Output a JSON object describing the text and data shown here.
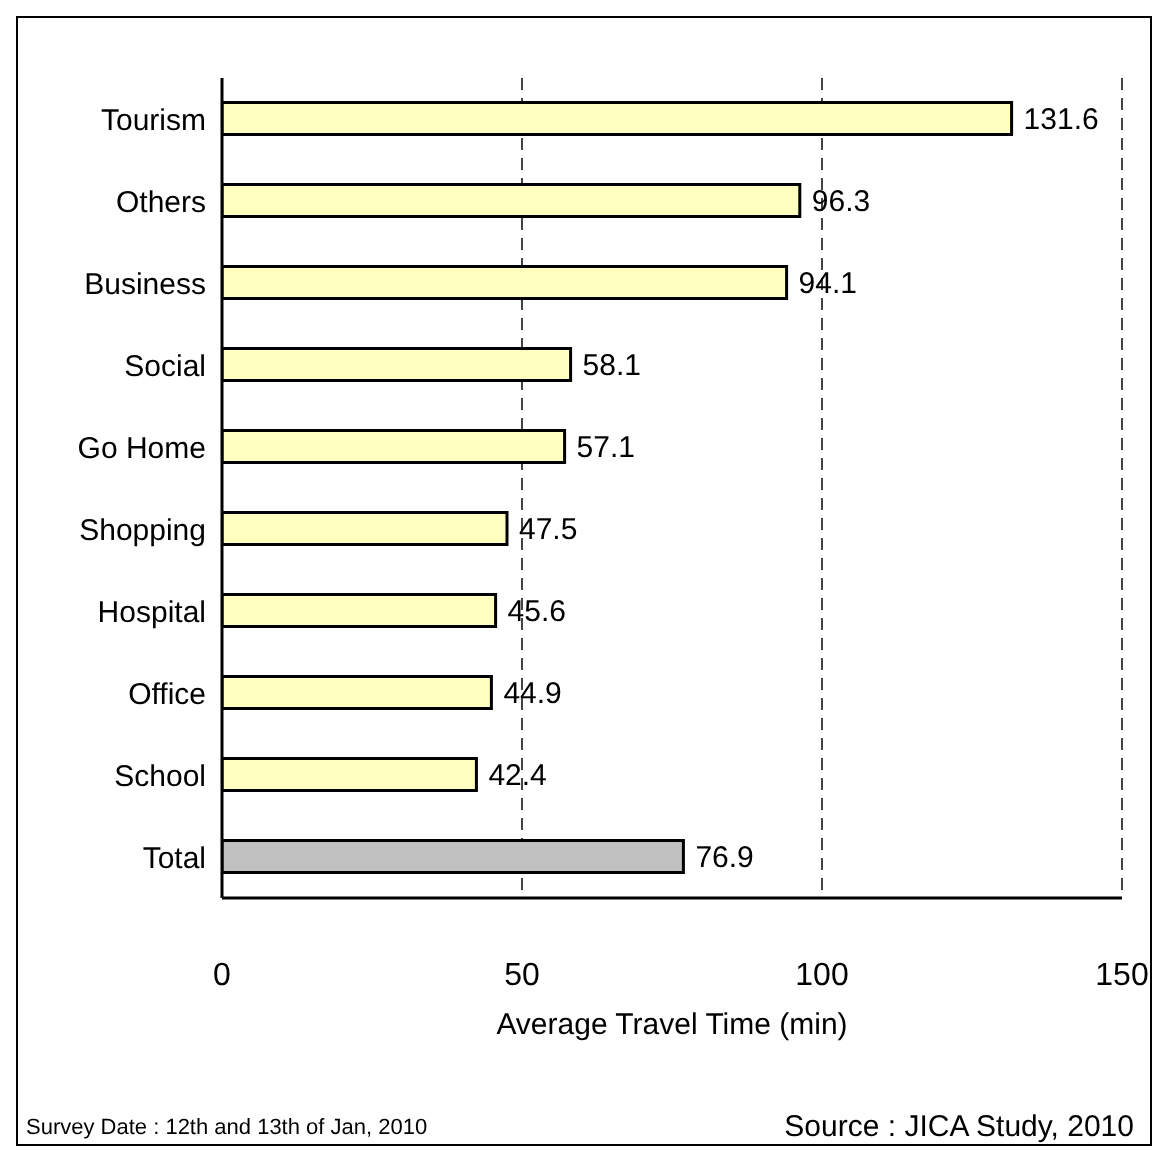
{
  "chart_data": {
    "type": "bar",
    "orientation": "horizontal",
    "categories": [
      "Tourism",
      "Others",
      "Business",
      "Social",
      "Go Home",
      "Shopping",
      "Hospital",
      "Office",
      "School",
      "Total"
    ],
    "values": [
      131.6,
      96.3,
      94.1,
      58.1,
      57.1,
      47.5,
      45.6,
      44.9,
      42.4,
      76.9
    ],
    "colors": [
      "#ffffc0",
      "#ffffc0",
      "#ffffc0",
      "#ffffc0",
      "#ffffc0",
      "#ffffc0",
      "#ffffc0",
      "#ffffc0",
      "#ffffc0",
      "#c0c0c0"
    ],
    "xlim": [
      0,
      150
    ],
    "xticks": [
      0,
      50,
      100,
      150
    ],
    "xlabel": "Average Travel Time (min)",
    "grid": "x",
    "data_labels": true,
    "legend": false,
    "annotations": [
      "Survey Date : 12th and 13th of Jan, 2010",
      "Source : JICA Study, 2010"
    ]
  }
}
